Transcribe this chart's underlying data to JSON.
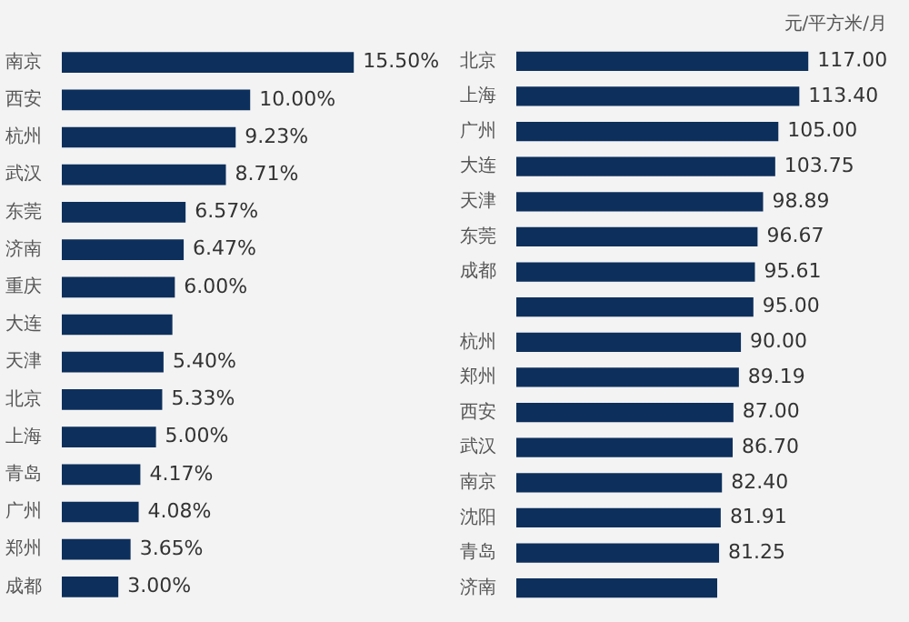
{
  "chart_data": [
    {
      "type": "bar",
      "orientation": "horizontal",
      "color": "#0d2f5c",
      "categories": [
        "南京",
        "西安",
        "杭州",
        "武汉",
        "东莞",
        "济南",
        "重庆",
        "大连",
        "天津",
        "北京",
        "上海",
        "青岛",
        "广州",
        "郑州",
        "成都"
      ],
      "values": [
        15.5,
        10,
        9.23,
        8.71,
        6.57,
        6.47,
        6,
        5.87,
        5.4,
        5.33,
        5,
        4.17,
        4.08,
        3.65,
        3
      ],
      "value_labels": [
        "15.50%",
        "10.00%",
        "9.23%",
        "8.71%",
        "6.57%",
        "6.47%",
        "6.00%",
        null,
        "5.40%",
        "5.33%",
        "5.00%",
        "4.17%",
        "4.08%",
        "3.65%",
        "3.00%"
      ]
    },
    {
      "type": "bar",
      "orientation": "horizontal",
      "color": "#0d2f5c",
      "annotations": [
        "元/平方米/月"
      ],
      "categories": [
        "北京",
        "上海",
        "广州",
        "大连",
        "天津",
        "东莞",
        "成都",
        null,
        "杭州",
        "郑州",
        "西安",
        "武汉",
        "南京",
        "沈阳",
        "青岛",
        "济南"
      ],
      "values": [
        117,
        113.4,
        105,
        103.75,
        98.89,
        96.67,
        95.61,
        95,
        90,
        89.19,
        87,
        86.7,
        82.4,
        81.91,
        81.25,
        80.5
      ],
      "value_labels": [
        "117.00",
        "113.40",
        "105.00",
        "103.75",
        "98.89",
        "96.67",
        "95.61",
        "95.00",
        "90.00",
        "89.19",
        "87.00",
        "86.70",
        "82.40",
        "81.91",
        "81.25",
        null
      ]
    }
  ]
}
